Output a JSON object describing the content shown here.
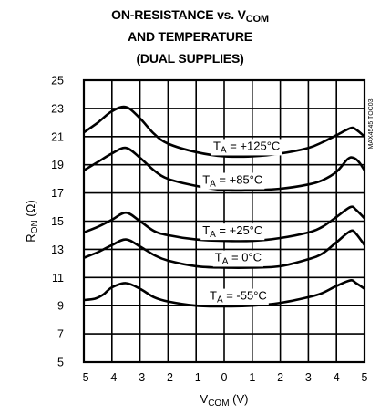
{
  "chart_data": {
    "type": "line",
    "title": {
      "line1_prefix": "ON-RESISTANCE vs. V",
      "line1_sub": "COM",
      "line2": "AND TEMPERATURE",
      "line3": "(DUAL SUPPLIES)"
    },
    "xlabel": {
      "main": "V",
      "sub": "COM",
      "unit": " (V)"
    },
    "ylabel": {
      "main": "R",
      "sub": "ON",
      "unit": " (Ω)"
    },
    "xlim": [
      -5,
      5
    ],
    "ylim": [
      5,
      25
    ],
    "xticks": [
      "-5",
      "-4",
      "-3",
      "-2",
      "-1",
      "0",
      "1",
      "2",
      "3",
      "4",
      "5"
    ],
    "yticks": [
      "5",
      "7",
      "9",
      "11",
      "13",
      "15",
      "17",
      "19",
      "21",
      "23",
      "25"
    ],
    "grid": true,
    "side_label": "MAX4545 TOC03",
    "series": [
      {
        "name": "+125°C",
        "label_value": "+125°C",
        "x": [
          -5,
          -4.5,
          -4,
          -3.5,
          -3,
          -2.5,
          -2,
          -1,
          0,
          1,
          2,
          3,
          3.5,
          4,
          4.5,
          4.7,
          5
        ],
        "y": [
          21.3,
          22.0,
          22.8,
          23.1,
          22.3,
          21.2,
          20.5,
          19.9,
          19.6,
          19.6,
          19.8,
          20.2,
          20.6,
          21.1,
          21.6,
          21.5,
          21.0
        ]
      },
      {
        "name": "+85°C",
        "label_value": "+85°C",
        "x": [
          -5,
          -4.5,
          -4,
          -3.5,
          -3,
          -2.5,
          -2,
          -1,
          0,
          1,
          2,
          3,
          3.5,
          4,
          4.4,
          4.6,
          4.8,
          5
        ],
        "y": [
          18.6,
          19.2,
          19.8,
          20.2,
          19.5,
          18.6,
          18.0,
          17.5,
          17.2,
          17.2,
          17.3,
          17.6,
          17.9,
          18.5,
          19.4,
          19.5,
          19.2,
          18.6
        ]
      },
      {
        "name": "+25°C",
        "label_value": "+25°C",
        "x": [
          -5,
          -4.5,
          -4,
          -3.5,
          -3,
          -2.5,
          -2,
          -1,
          0,
          1,
          2,
          3,
          3.5,
          4,
          4.5,
          4.7,
          5
        ],
        "y": [
          14.2,
          14.6,
          15.1,
          15.6,
          15.0,
          14.3,
          14.0,
          13.7,
          13.6,
          13.6,
          13.8,
          14.2,
          14.6,
          15.3,
          16.0,
          15.8,
          15.2
        ]
      },
      {
        "name": "0°C",
        "label_value": "0°C",
        "x": [
          -5,
          -4.5,
          -4,
          -3.5,
          -3,
          -2.5,
          -2,
          -1,
          0,
          1,
          2,
          3,
          3.5,
          4,
          4.5,
          4.7,
          5
        ],
        "y": [
          12.4,
          12.8,
          13.3,
          13.7,
          13.2,
          12.6,
          12.2,
          11.8,
          11.7,
          11.7,
          11.8,
          12.3,
          12.7,
          13.5,
          14.3,
          14.1,
          13.3
        ]
      },
      {
        "name": "-55°C",
        "label_value": "-55°C",
        "x": [
          -5,
          -4.6,
          -4.3,
          -4,
          -3.5,
          -3,
          -2.5,
          -2,
          -1,
          0,
          1,
          2,
          3,
          3.5,
          4,
          4.5,
          4.7,
          5
        ],
        "y": [
          9.4,
          9.5,
          9.8,
          10.3,
          10.6,
          10.2,
          9.6,
          9.3,
          9.0,
          8.95,
          9.0,
          9.2,
          9.6,
          9.9,
          10.4,
          10.8,
          10.6,
          10.2
        ]
      }
    ]
  }
}
